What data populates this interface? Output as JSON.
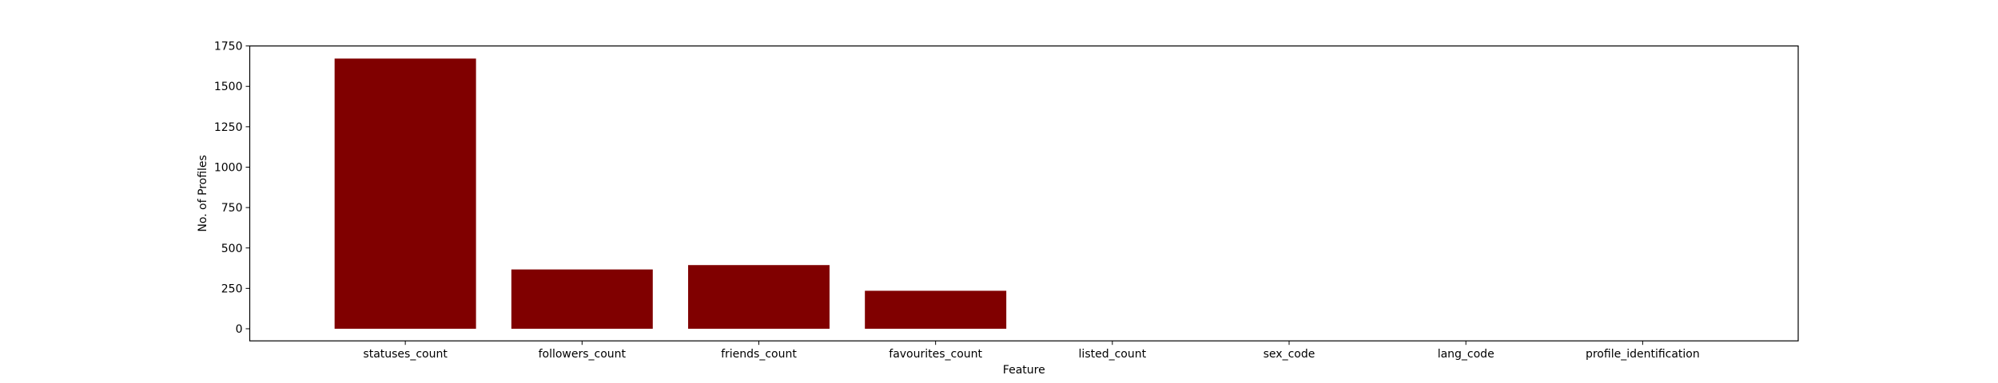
{
  "chart_data": {
    "type": "bar",
    "title": "",
    "xlabel": "Feature",
    "ylabel": "No. of Profiles",
    "categories": [
      "statuses_count",
      "followers_count",
      "friends_count",
      "favourites_count",
      "listed_count",
      "sex_code",
      "lang_code",
      "profile_identification"
    ],
    "values": [
      1672,
      367,
      394,
      235,
      0,
      0,
      0,
      0
    ],
    "ylim": [
      -75,
      1750
    ],
    "yticks": [
      0,
      250,
      500,
      750,
      1000,
      1250,
      1500,
      1750
    ],
    "bar_color": "#800000",
    "grid": false,
    "legend": null
  }
}
